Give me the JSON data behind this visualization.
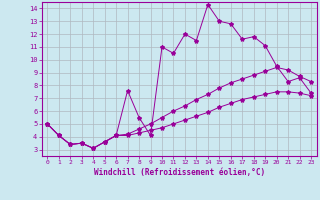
{
  "xlabel": "Windchill (Refroidissement éolien,°C)",
  "background_color": "#cce8f0",
  "line_color": "#990099",
  "grid_color": "#b0b8c0",
  "xlim": [
    -0.5,
    23.5
  ],
  "ylim": [
    2.5,
    14.5
  ],
  "yticks": [
    3,
    4,
    5,
    6,
    7,
    8,
    9,
    10,
    11,
    12,
    13,
    14
  ],
  "xticks": [
    0,
    1,
    2,
    3,
    4,
    5,
    6,
    7,
    8,
    9,
    10,
    11,
    12,
    13,
    14,
    15,
    16,
    17,
    18,
    19,
    20,
    21,
    22,
    23
  ],
  "line1_x": [
    0,
    1,
    2,
    3,
    4,
    5,
    6,
    7,
    8,
    9,
    10,
    11,
    12,
    13,
    14,
    15,
    16,
    17,
    18,
    19,
    20,
    21,
    22,
    23
  ],
  "line1_y": [
    5.0,
    4.1,
    3.4,
    3.5,
    3.1,
    3.6,
    4.1,
    7.6,
    5.5,
    4.1,
    11.0,
    10.5,
    12.0,
    11.5,
    14.3,
    13.0,
    12.8,
    11.6,
    11.8,
    11.1,
    9.5,
    8.3,
    8.6,
    7.4
  ],
  "line2_x": [
    0,
    1,
    2,
    3,
    4,
    5,
    6,
    7,
    8,
    9,
    10,
    11,
    12,
    13,
    14,
    15,
    16,
    17,
    18,
    19,
    20,
    21,
    22,
    23
  ],
  "line2_y": [
    5.0,
    4.1,
    3.4,
    3.5,
    3.1,
    3.6,
    4.1,
    4.2,
    4.6,
    5.0,
    5.5,
    6.0,
    6.4,
    6.9,
    7.3,
    7.8,
    8.2,
    8.5,
    8.8,
    9.1,
    9.4,
    9.2,
    8.7,
    8.3
  ],
  "line3_x": [
    0,
    1,
    2,
    3,
    4,
    5,
    6,
    7,
    8,
    9,
    10,
    11,
    12,
    13,
    14,
    15,
    16,
    17,
    18,
    19,
    20,
    21,
    22,
    23
  ],
  "line3_y": [
    5.0,
    4.1,
    3.4,
    3.5,
    3.1,
    3.6,
    4.1,
    4.1,
    4.3,
    4.5,
    4.7,
    5.0,
    5.3,
    5.6,
    5.9,
    6.3,
    6.6,
    6.9,
    7.1,
    7.3,
    7.5,
    7.5,
    7.4,
    7.2
  ]
}
